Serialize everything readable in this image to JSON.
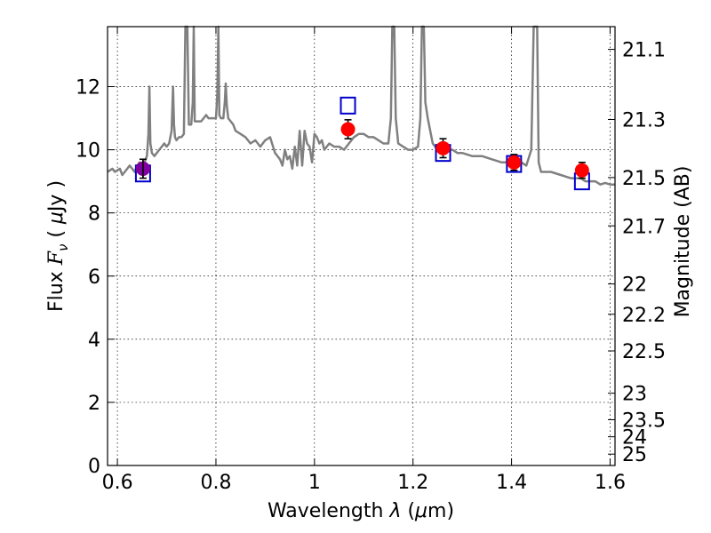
{
  "chart_data": {
    "type": "line",
    "xlabel": "Wavelength  λ (μm)",
    "ylabel": "Flux  F_ν  ( μJy )",
    "ylabel_parts": {
      "lead": "Flux  ",
      "F": "F",
      "nu": "ν",
      "open": "  (  ",
      "mu": "μ",
      "unit": "Jy )"
    },
    "xlabel_parts": {
      "lead": "Wavelength  ",
      "lambda": "λ",
      "open": " (",
      "mu": "μ",
      "unit": "m)"
    },
    "y2label": "Magnitude (AB)",
    "xlim": [
      0.58,
      1.61
    ],
    "ylim": [
      0,
      13.9
    ],
    "grid": true,
    "x_ticks": [
      {
        "value": 0.6,
        "label": "0.6"
      },
      {
        "value": 0.8,
        "label": "0.8"
      },
      {
        "value": 1.0,
        "label": "1"
      },
      {
        "value": 1.2,
        "label": "1.2"
      },
      {
        "value": 1.4,
        "label": "1.4"
      },
      {
        "value": 1.6,
        "label": "1.6"
      }
    ],
    "y_ticks": [
      {
        "value": 0,
        "label": "0"
      },
      {
        "value": 2,
        "label": "2"
      },
      {
        "value": 4,
        "label": "4"
      },
      {
        "value": 6,
        "label": "6"
      },
      {
        "value": 8,
        "label": "8"
      },
      {
        "value": 10,
        "label": "10"
      },
      {
        "value": 12,
        "label": "12"
      }
    ],
    "y2_ticks": [
      {
        "label": "21.1",
        "flux": 13.18
      },
      {
        "label": "21.3",
        "flux": 10.96
      },
      {
        "label": "21.5",
        "flux": 9.12
      },
      {
        "label": "21.7",
        "flux": 7.59
      },
      {
        "label": "22",
        "flux": 5.75
      },
      {
        "label": "22.2",
        "flux": 4.79
      },
      {
        "label": "22.5",
        "flux": 3.63
      },
      {
        "label": "23",
        "flux": 2.29
      },
      {
        "label": "23.5",
        "flux": 1.45
      },
      {
        "label": "24",
        "flux": 0.91
      },
      {
        "label": "25",
        "flux": 0.36
      }
    ],
    "spectrum": {
      "color": "#808080",
      "x": [
        0.58,
        0.585,
        0.59,
        0.595,
        0.6,
        0.605,
        0.61,
        0.615,
        0.62,
        0.625,
        0.63,
        0.635,
        0.64,
        0.645,
        0.65,
        0.655,
        0.66,
        0.663,
        0.665,
        0.667,
        0.67,
        0.675,
        0.68,
        0.685,
        0.69,
        0.695,
        0.7,
        0.705,
        0.71,
        0.713,
        0.715,
        0.717,
        0.72,
        0.725,
        0.73,
        0.735,
        0.738,
        0.74,
        0.742,
        0.745,
        0.75,
        0.753,
        0.755,
        0.757,
        0.76,
        0.765,
        0.77,
        0.775,
        0.78,
        0.785,
        0.79,
        0.795,
        0.8,
        0.803,
        0.805,
        0.807,
        0.81,
        0.815,
        0.818,
        0.82,
        0.822,
        0.825,
        0.83,
        0.835,
        0.84,
        0.85,
        0.86,
        0.87,
        0.88,
        0.89,
        0.9,
        0.91,
        0.92,
        0.93,
        0.935,
        0.94,
        0.945,
        0.95,
        0.955,
        0.96,
        0.965,
        0.97,
        0.975,
        0.98,
        0.985,
        0.99,
        0.995,
        1.0,
        1.005,
        1.01,
        1.015,
        1.02,
        1.03,
        1.04,
        1.05,
        1.06,
        1.07,
        1.08,
        1.09,
        1.1,
        1.11,
        1.12,
        1.13,
        1.14,
        1.15,
        1.155,
        1.158,
        1.16,
        1.162,
        1.165,
        1.17,
        1.18,
        1.19,
        1.2,
        1.21,
        1.215,
        1.218,
        1.22,
        1.222,
        1.225,
        1.23,
        1.24,
        1.25,
        1.26,
        1.27,
        1.28,
        1.29,
        1.3,
        1.32,
        1.34,
        1.36,
        1.38,
        1.4,
        1.42,
        1.43,
        1.44,
        1.445,
        1.448,
        1.45,
        1.452,
        1.455,
        1.46,
        1.48,
        1.5,
        1.52,
        1.54,
        1.55,
        1.56,
        1.57,
        1.58,
        1.59,
        1.6,
        1.61
      ],
      "y": [
        9.3,
        9.35,
        9.4,
        9.3,
        9.35,
        9.4,
        9.2,
        9.3,
        9.4,
        9.5,
        9.4,
        9.3,
        9.5,
        9.6,
        9.5,
        9.6,
        9.8,
        10.5,
        12.0,
        10.2,
        9.9,
        9.8,
        9.9,
        10.0,
        10.1,
        10.2,
        10.1,
        10.2,
        10.6,
        12.0,
        10.8,
        10.4,
        10.3,
        10.4,
        10.4,
        10.5,
        13.9,
        13.9,
        13.9,
        10.8,
        10.8,
        11.5,
        13.9,
        10.9,
        10.9,
        10.9,
        10.9,
        11.0,
        11.1,
        11.0,
        11.0,
        11.0,
        11.0,
        11.8,
        13.9,
        11.1,
        11.0,
        11.0,
        11.5,
        12.1,
        11.4,
        11.0,
        10.9,
        10.8,
        10.6,
        10.5,
        10.4,
        10.2,
        10.3,
        10.1,
        10.3,
        10.4,
        9.9,
        9.7,
        9.5,
        10.0,
        9.7,
        9.8,
        9.4,
        10.1,
        9.5,
        10.6,
        9.5,
        10.6,
        10.2,
        10.1,
        9.6,
        10.5,
        10.4,
        10.2,
        10.3,
        10.0,
        10.2,
        10.1,
        10.1,
        10.0,
        10.2,
        10.4,
        10.5,
        10.5,
        10.4,
        10.4,
        10.3,
        10.2,
        10.2,
        11.0,
        13.9,
        13.9,
        13.9,
        11.0,
        10.2,
        10.1,
        10.0,
        10.0,
        10.1,
        11.0,
        13.9,
        13.9,
        13.9,
        11.5,
        11.0,
        10.2,
        10.0,
        10.0,
        10.0,
        10.0,
        9.9,
        9.9,
        9.8,
        9.8,
        9.7,
        9.6,
        9.6,
        9.6,
        9.5,
        10.0,
        13.9,
        13.9,
        13.9,
        13.9,
        9.6,
        9.3,
        9.3,
        9.2,
        9.1,
        9.1,
        9.0,
        9.0,
        9.0,
        8.9,
        8.95,
        8.9,
        8.9
      ]
    },
    "photometry": {
      "color": "#ff0000",
      "points": [
        {
          "x": 0.652,
          "y": 9.4,
          "err": 0.3
        },
        {
          "x": 1.068,
          "y": 10.65,
          "err": 0.3
        },
        {
          "x": 1.261,
          "y": 10.05,
          "err": 0.3
        },
        {
          "x": 1.405,
          "y": 9.6,
          "err": 0.25
        },
        {
          "x": 1.543,
          "y": 9.35,
          "err": 0.25
        }
      ]
    },
    "model_fluxes": {
      "color": "#0000cc",
      "points": [
        {
          "x": 0.652,
          "y": 9.25
        },
        {
          "x": 1.068,
          "y": 11.4
        },
        {
          "x": 1.261,
          "y": 9.9
        },
        {
          "x": 1.405,
          "y": 9.55
        },
        {
          "x": 1.543,
          "y": 9.0
        }
      ]
    },
    "highlight_point": {
      "x": 0.652,
      "y": 9.4,
      "color": "#8000a0"
    }
  }
}
